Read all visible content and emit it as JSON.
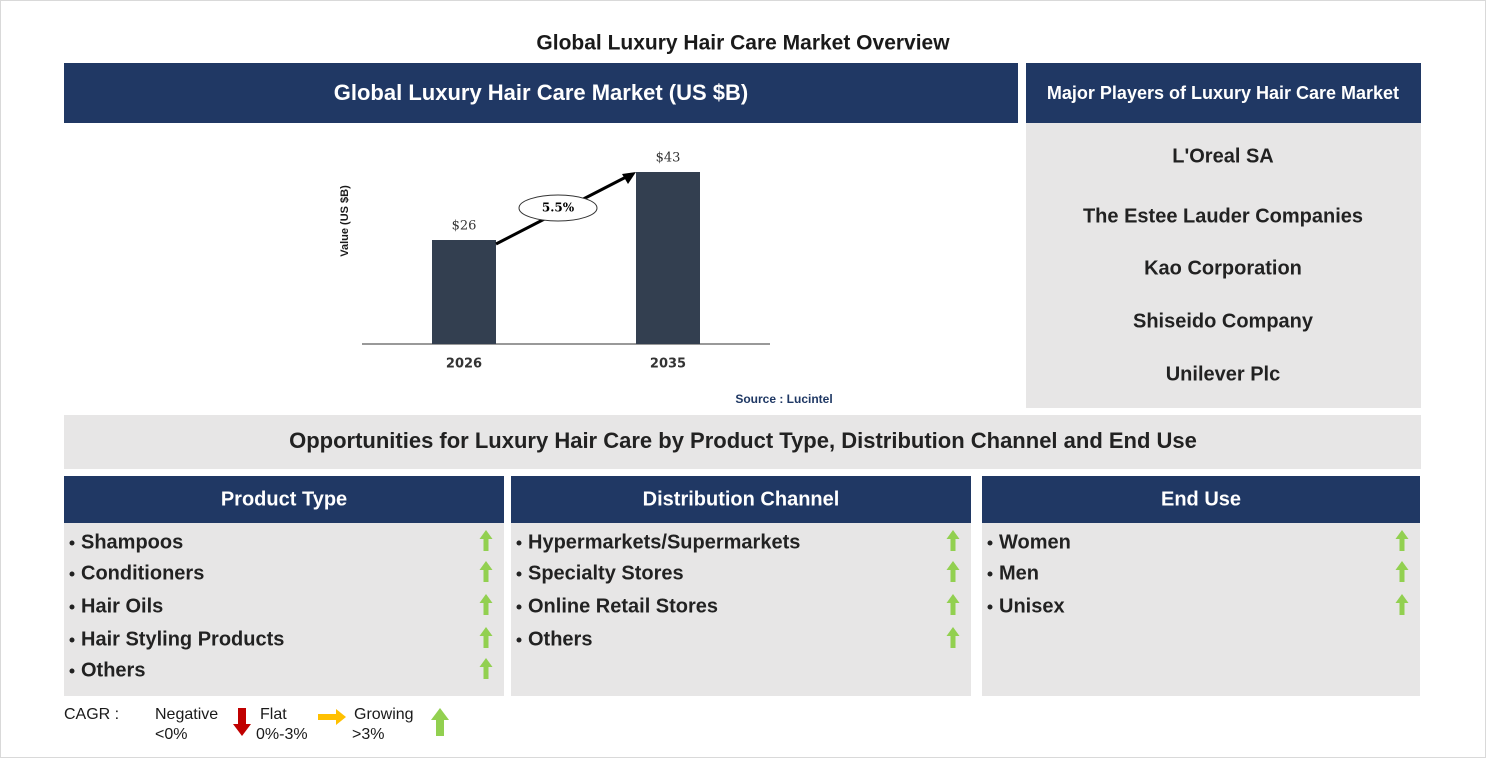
{
  "title": "Global Luxury Hair Care Market Overview",
  "chart_data": {
    "type": "bar",
    "title": "Global Luxury Hair Care Market (US $B)",
    "y_label": "Value (US $B)",
    "categories": [
      "2026",
      "2035"
    ],
    "values": [
      26,
      43
    ],
    "value_labels": [
      "$26",
      "$43"
    ],
    "color": "#333f50",
    "ylim": [
      0,
      50
    ],
    "annotation": "5.5%",
    "source": "Source : Lucintel"
  },
  "players": {
    "title": "Major Players of Luxury Hair Care Market",
    "items": [
      "L'Oreal SA",
      "The Estee Lauder Companies",
      "Kao Corporation",
      "Shiseido Company",
      "Unilever Plc"
    ]
  },
  "opportunities": {
    "title": "Opportunities for Luxury Hair Care by Product Type, Distribution Channel and End Use",
    "segments": [
      {
        "title": "Product Type",
        "items": [
          "Shampoos",
          "Conditioners",
          "Hair Oils",
          "Hair Styling Products",
          "Others"
        ]
      },
      {
        "title": "Distribution Channel",
        "items": [
          "Hypermarkets/Supermarkets",
          "Specialty Stores",
          "Online Retail Stores",
          "Others"
        ]
      },
      {
        "title": "End Use",
        "items": [
          "Women",
          "Men",
          "Unisex"
        ]
      }
    ]
  },
  "legend": {
    "label": "CAGR :",
    "negative": "Negative",
    "negative_range": "<0%",
    "flat": "Flat",
    "flat_range": "0%-3%",
    "growing": "Growing",
    "growing_range": ">3%"
  }
}
